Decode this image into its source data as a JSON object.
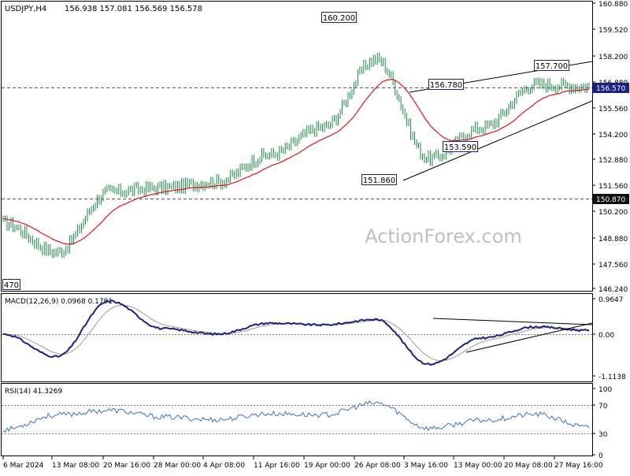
{
  "header": {
    "symbol": "USDJPY,H4",
    "ohlc": "156.938 157.081 156.569 156.578"
  },
  "watermark": "ActionForex.com",
  "colors": {
    "background": "#ffffff",
    "border": "#000000",
    "price": "#1b8a46",
    "ma": "#e3151a",
    "macd_line": "#1a2185",
    "macd_signal": "#a89a8c",
    "rsi": "#3a6fd1",
    "box_border": "#1a2185",
    "current_bg": "#1a2185",
    "level_bg": "#111111",
    "dashed": "#5a5a5a",
    "grid": "#777777"
  },
  "panels": {
    "price": {
      "y_ticks": [
        "160.880",
        "159.520",
        "158.200",
        "156.880",
        "155.560",
        "154.200",
        "152.880",
        "151.560",
        "150.200",
        "148.880",
        "147.560",
        "146.240"
      ],
      "current_price": "156.570",
      "support_level": "150.870",
      "annotations": [
        "160.200",
        "156.780",
        "157.700",
        "153.590",
        "151.860",
        "470"
      ]
    },
    "macd": {
      "title": "MACD(12,26,9) 0.0968 0.1791",
      "y_ticks": [
        "0.9647",
        "0.00",
        "-1.1138"
      ]
    },
    "rsi": {
      "title": "RSI(14) 41.3269",
      "y_ticks": [
        "100",
        "70",
        "30",
        "0"
      ]
    }
  },
  "x_axis": {
    "labels": [
      "6 Mar 2024",
      "13 Mar 08:00",
      "20 Mar 16:00",
      "28 Mar 00:00",
      "4 Apr 08:00",
      "11 Apr 16:00",
      "19 Apr 00:00",
      "26 Apr 08:00",
      "3 May 16:00",
      "13 May 00:00",
      "20 May 08:00",
      "27 May 16:00"
    ]
  },
  "chart_data": {
    "type": "line",
    "title": "USDJPY,H4",
    "series": [
      {
        "name": "USDJPY,H4",
        "x": [
          "6 Mar 2024",
          "13 Mar 08:00",
          "20 Mar 16:00",
          "28 Mar 00:00",
          "4 Apr 08:00",
          "11 Apr 16:00",
          "19 Apr 00:00",
          "26 Apr 08:00",
          "3 May 16:00",
          "13 May 00:00",
          "20 May 08:00",
          "27 May 16:00"
        ],
        "values": [
          149.6,
          148.1,
          151.2,
          151.4,
          151.7,
          153.1,
          154.5,
          158.0,
          152.9,
          154.5,
          156.7,
          156.6
        ]
      },
      {
        "name": "MACD(12,26,9)",
        "x": [
          "6 Mar 2024",
          "13 Mar 08:00",
          "20 Mar 16:00",
          "28 Mar 00:00",
          "4 Apr 08:00",
          "11 Apr 16:00",
          "19 Apr 00:00",
          "26 Apr 08:00",
          "3 May 16:00",
          "13 May 00:00",
          "20 May 08:00",
          "27 May 16:00"
        ],
        "values": [
          0.0,
          -0.6,
          0.9,
          0.15,
          0.0,
          0.3,
          0.25,
          0.4,
          -0.8,
          -0.1,
          0.2,
          0.1
        ]
      },
      {
        "name": "RSI(14)",
        "x": [
          "6 Mar 2024",
          "13 Mar 08:00",
          "20 Mar 16:00",
          "28 Mar 00:00",
          "4 Apr 08:00",
          "11 Apr 16:00",
          "19 Apr 00:00",
          "26 Apr 08:00",
          "3 May 16:00",
          "13 May 00:00",
          "20 May 08:00",
          "27 May 16:00"
        ],
        "values": [
          38,
          60,
          67,
          57,
          53,
          62,
          60,
          78,
          40,
          52,
          61,
          41
        ]
      }
    ],
    "ylim": [
      146.24,
      160.88
    ],
    "grid": false,
    "legend": "top-left"
  }
}
